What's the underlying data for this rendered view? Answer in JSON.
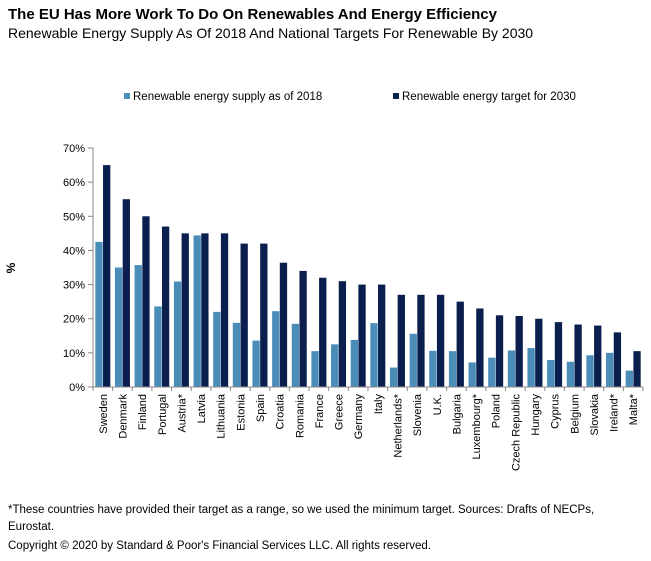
{
  "chart_data": {
    "type": "bar",
    "title": "The EU Has More Work To Do On Renewables And Energy Efficiency",
    "subtitle": "Renewable Energy Supply As Of 2018 And National Targets For Renewable By 2030",
    "ylabel": "%",
    "xlabel": "",
    "ylim": [
      0,
      70
    ],
    "yticks": [
      0,
      10,
      20,
      30,
      40,
      50,
      60,
      70
    ],
    "ytick_suffix": "%",
    "grid": false,
    "legend_position": "top",
    "categories": [
      "Sweden",
      "Denmark",
      "Finland",
      "Portugal",
      "Austria*",
      "Latvia",
      "Lithuania",
      "Estonia",
      "Spain",
      "Croatia",
      "Romania",
      "France",
      "Greece",
      "Germany",
      "Italy",
      "Netherlands*",
      "Slovenia",
      "U.K.",
      "Bulgaria",
      "Luxembourg*",
      "Poland",
      "Czech Republic",
      "Hungary",
      "Cyprus",
      "Belgium",
      "Slovakia",
      "Ireland*",
      "Malta*"
    ],
    "series": [
      {
        "name": "Renewable energy supply as of 2018",
        "color": "#4a8db8",
        "values": [
          42.5,
          35,
          35.7,
          23.6,
          30.9,
          44.4,
          22,
          18.8,
          13.6,
          22.2,
          18.5,
          10.5,
          12.5,
          13.8,
          18.7,
          5.7,
          15.6,
          10.6,
          10.5,
          7.2,
          8.6,
          10.7,
          11.4,
          7.9,
          7.4,
          9.3,
          10,
          4.8
        ]
      },
      {
        "name": "Renewable energy target for 2030",
        "color": "#0b1f4f",
        "values": [
          65,
          55,
          50,
          47,
          45,
          45,
          45,
          42,
          42,
          36.4,
          34,
          32,
          31,
          30,
          30,
          27,
          27,
          27,
          25,
          23,
          21,
          20.8,
          20,
          19,
          18.3,
          18,
          16,
          10.5
        ]
      }
    ]
  },
  "footnote": "*These countries have provided their target as a range, so we used the minimum target. Sources: Drafts of NECPs, Eurostat.",
  "copyright": "Copyright © 2020 by Standard & Poor's Financial Services LLC. All rights reserved."
}
